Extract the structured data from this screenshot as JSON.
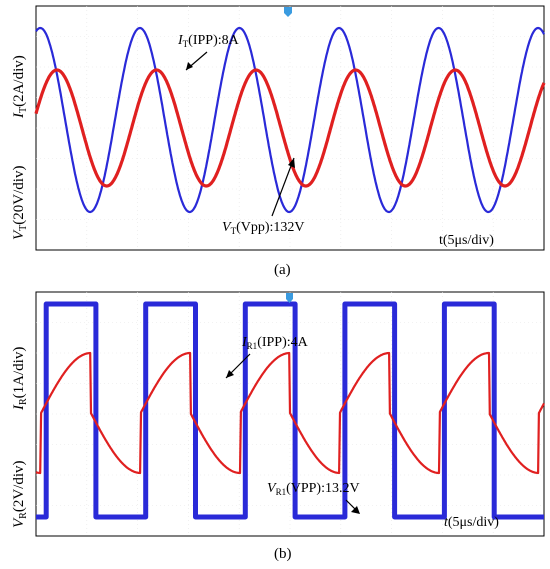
{
  "chart_data": [
    {
      "panel_caption": "(a)",
      "type": "line",
      "ylabel_current": "I_T(2A/div)",
      "ylabel_voltage": "V_T(20V/div)",
      "xlabel": "t(5μs/div)",
      "annotations": [
        {
          "var": "I",
          "sub": "T",
          "text": "(IPP):8A"
        },
        {
          "var": "V",
          "sub": "T",
          "text": "(Vpp):132V"
        }
      ],
      "x_range_us": [
        0,
        50
      ],
      "series": [
        {
          "shape": "sine",
          "color": "#2a2ad8",
          "peak_to_peak": 8,
          "unit": "A",
          "period_us": 9.8,
          "phase": 1.3
        },
        {
          "shape": "sine",
          "color": "#e02020",
          "peak_to_peak": 132,
          "unit": "V",
          "period_us": 9.8,
          "phase": 0.25
        }
      ]
    },
    {
      "panel_caption": "(b)",
      "type": "line",
      "ylabel_current": "I_R(1A/div)",
      "ylabel_voltage": "V_R(2V/div)",
      "xlabel": "t(5μs/div)",
      "annotations": [
        {
          "var": "I",
          "sub": "R1",
          "text": "(IPP):4A"
        },
        {
          "var": "V",
          "sub": "R1",
          "text": "(VPP):13.2V"
        }
      ],
      "x_range_us": [
        0,
        50
      ],
      "series": [
        {
          "shape": "square",
          "color": "#2a2ad8",
          "peak_to_peak": 13.2,
          "unit": "V",
          "period_us": 9.8
        },
        {
          "shape": "triangle",
          "color": "#e02020",
          "peak_to_peak": 4,
          "unit": "A",
          "period_us": 9.8
        }
      ]
    }
  ]
}
